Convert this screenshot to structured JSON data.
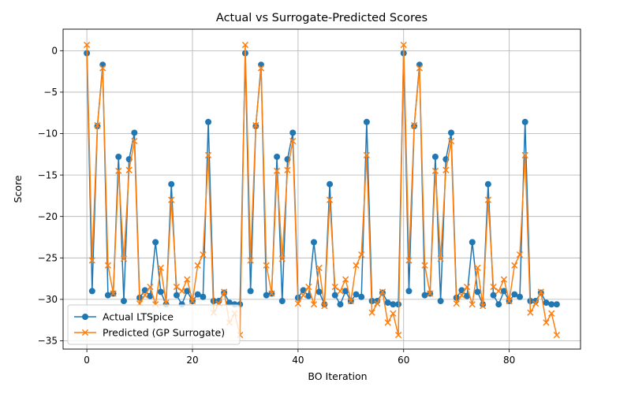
{
  "chart_data": {
    "type": "line",
    "title": "Actual vs Surrogate-Predicted Scores",
    "xlabel": "BO Iteration",
    "ylabel": "Score",
    "xlim": [
      -4.5,
      93.5
    ],
    "ylim": [
      -36.0,
      2.6
    ],
    "xticks": [
      0,
      20,
      40,
      60,
      80
    ],
    "yticks": [
      0,
      -5,
      -10,
      -15,
      -20,
      -25,
      -30,
      -35
    ],
    "grid": true,
    "legend_position": "lower-left",
    "x": [
      0,
      1,
      2,
      3,
      4,
      5,
      6,
      7,
      8,
      9,
      10,
      11,
      12,
      13,
      14,
      15,
      16,
      17,
      18,
      19,
      20,
      21,
      22,
      23,
      24,
      25,
      26,
      27,
      28,
      29,
      30,
      31,
      32,
      33,
      34,
      35,
      36,
      37,
      38,
      39,
      40,
      41,
      42,
      43,
      44,
      45,
      46,
      47,
      48,
      49,
      50,
      51,
      52,
      53,
      54,
      55,
      56,
      57,
      58,
      59,
      60,
      61,
      62,
      63,
      64,
      65,
      66,
      67,
      68,
      69,
      70,
      71,
      72,
      73,
      74,
      75,
      76,
      77,
      78,
      79,
      80,
      81,
      82,
      83,
      84,
      85,
      86,
      87,
      88,
      89
    ],
    "series": [
      {
        "name": "Actual LTSpice",
        "color": "#1f77b4",
        "marker": "circle",
        "values": [
          -0.3,
          -29.0,
          -9.1,
          -1.7,
          -29.5,
          -29.3,
          -12.8,
          -30.2,
          -13.1,
          -9.9,
          -29.8,
          -28.9,
          -29.6,
          -23.1,
          -29.1,
          -30.6,
          -16.1,
          -29.5,
          -30.6,
          -29.0,
          -30.2,
          -29.4,
          -29.7,
          -8.6,
          -30.2,
          -30.2,
          -29.2,
          -30.4,
          -30.6,
          -30.6,
          -0.3,
          -29.0,
          -9.1,
          -1.7,
          -29.5,
          -29.3,
          -12.8,
          -30.2,
          -13.1,
          -9.9,
          -29.8,
          -28.9,
          -29.6,
          -23.1,
          -29.1,
          -30.6,
          -16.1,
          -29.5,
          -30.6,
          -29.0,
          -30.2,
          -29.4,
          -29.7,
          -8.6,
          -30.2,
          -30.2,
          -29.2,
          -30.4,
          -30.6,
          -30.6,
          -0.3,
          -29.0,
          -9.1,
          -1.7,
          -29.5,
          -29.3,
          -12.8,
          -30.2,
          -13.1,
          -9.9,
          -29.8,
          -28.9,
          -29.6,
          -23.1,
          -29.1,
          -30.6,
          -16.1,
          -29.5,
          -30.6,
          -29.0,
          -30.2,
          -29.4,
          -29.7,
          -8.6,
          -30.2,
          -30.2,
          -29.2,
          -30.4,
          -30.6,
          -30.6
        ]
      },
      {
        "name": "Predicted (GP Surrogate)",
        "color": "#ff7f0e",
        "marker": "x",
        "values": [
          0.7,
          -25.3,
          -9.0,
          -2.1,
          -25.9,
          -29.3,
          -14.5,
          -25.1,
          -14.4,
          -10.9,
          -30.5,
          -29.5,
          -28.5,
          -30.6,
          -26.2,
          -30.4,
          -18.0,
          -28.5,
          -29.0,
          -27.6,
          -30.2,
          -25.9,
          -24.6,
          -12.6,
          -31.6,
          -30.5,
          -29.1,
          -32.8,
          -31.7,
          -34.3,
          0.7,
          -25.3,
          -9.0,
          -2.1,
          -25.9,
          -29.3,
          -14.5,
          -25.1,
          -14.4,
          -10.9,
          -30.5,
          -29.5,
          -28.5,
          -30.6,
          -26.2,
          -30.8,
          -18.0,
          -28.5,
          -29.0,
          -27.6,
          -30.2,
          -25.9,
          -24.6,
          -12.6,
          -31.6,
          -30.5,
          -29.1,
          -32.8,
          -31.7,
          -34.3,
          0.7,
          -25.3,
          -9.0,
          -2.1,
          -25.9,
          -29.3,
          -14.5,
          -25.1,
          -14.4,
          -10.9,
          -30.5,
          -29.5,
          -28.5,
          -30.6,
          -26.2,
          -30.8,
          -18.0,
          -28.5,
          -29.0,
          -27.6,
          -30.2,
          -25.9,
          -24.6,
          -12.6,
          -31.6,
          -30.5,
          -29.1,
          -32.8,
          -31.7,
          -34.3
        ]
      }
    ]
  }
}
